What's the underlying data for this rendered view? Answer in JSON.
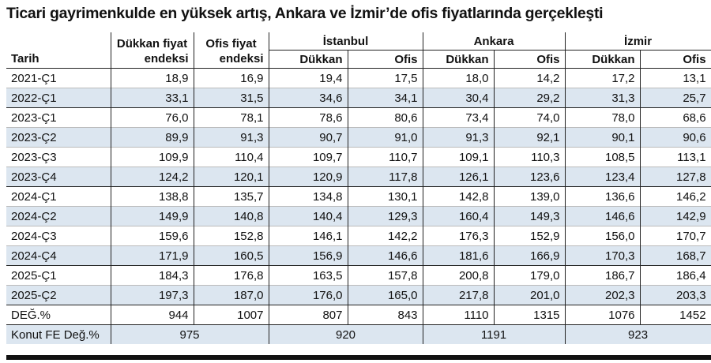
{
  "title": "Ticari gayrimenkulde en yüksek artış, Ankara ve İzmir’de ofis fiyatlarında gerçekleşti",
  "table": {
    "header": {
      "date": "Tarih",
      "index_columns": [
        [
          "Dükkan fiyat",
          "endeksi"
        ],
        [
          "Ofis fiyat",
          "endeksi"
        ]
      ],
      "cities": [
        {
          "name": "İstanbul",
          "columns": [
            "Dükkan",
            "Ofis"
          ]
        },
        {
          "name": "Ankara",
          "columns": [
            "Dükkan",
            "Ofis"
          ]
        },
        {
          "name": "İzmir",
          "columns": [
            "Dükkan",
            "Ofis"
          ]
        }
      ]
    },
    "rows": [
      [
        "2021-Ç1",
        "18,9",
        "16,9",
        "19,4",
        "17,5",
        "18,0",
        "14,2",
        "17,2",
        "13,1"
      ],
      [
        "2022-Ç1",
        "33,1",
        "31,5",
        "34,6",
        "34,1",
        "30,4",
        "29,2",
        "31,3",
        "25,7"
      ],
      [
        "2023-Ç1",
        "76,0",
        "78,1",
        "78,6",
        "80,6",
        "73,4",
        "74,0",
        "78,0",
        "68,6"
      ],
      [
        "2023-Ç2",
        "89,9",
        "91,3",
        "90,7",
        "91,0",
        "91,3",
        "92,1",
        "90,1",
        "90,6"
      ],
      [
        "2023-Ç3",
        "109,9",
        "110,4",
        "109,7",
        "110,7",
        "109,1",
        "110,3",
        "108,5",
        "113,1"
      ],
      [
        "2023-Ç4",
        "124,2",
        "120,1",
        "120,9",
        "117,8",
        "126,1",
        "123,6",
        "123,4",
        "127,8"
      ],
      [
        "2024-Ç1",
        "138,8",
        "135,7",
        "134,8",
        "130,1",
        "142,8",
        "139,0",
        "136,6",
        "146,2"
      ],
      [
        "2024-Ç2",
        "149,9",
        "140,8",
        "140,4",
        "129,3",
        "160,4",
        "149,3",
        "146,6",
        "142,9"
      ],
      [
        "2024-Ç3",
        "159,6",
        "152,8",
        "146,1",
        "142,2",
        "176,3",
        "152,9",
        "156,0",
        "170,7"
      ],
      [
        "2024-Ç4",
        "171,9",
        "160,5",
        "156,9",
        "146,6",
        "181,6",
        "166,9",
        "170,3",
        "168,7"
      ],
      [
        "2025-Ç1",
        "184,3",
        "176,8",
        "163,5",
        "157,8",
        "200,8",
        "179,0",
        "186,7",
        "186,4"
      ],
      [
        "2025-Ç2",
        "197,3",
        "187,0",
        "176,0",
        "165,0",
        "217,8",
        "201,0",
        "202,3",
        "203,3"
      ]
    ],
    "change_row": [
      "DEĞ.%",
      "944",
      "1007",
      "807",
      "843",
      "1110",
      "1315",
      "1076",
      "1452"
    ],
    "housing_row": {
      "label": "Konut FE Değ.%",
      "values": [
        "975",
        "920",
        "1191",
        "923"
      ]
    }
  }
}
